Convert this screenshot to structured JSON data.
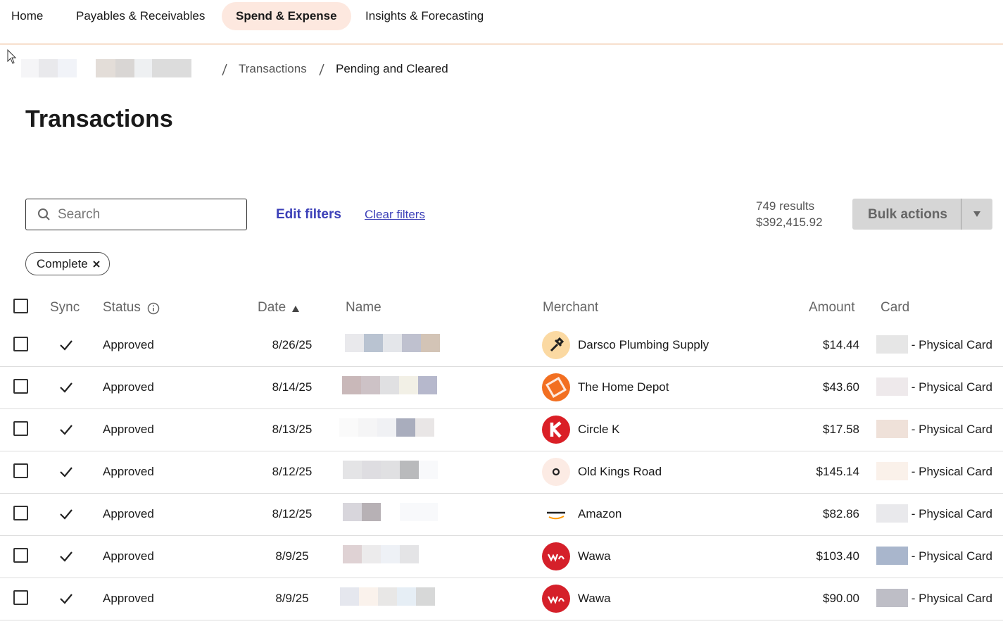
{
  "nav": [
    "Home",
    "Payables & Receivables",
    "Spend & Expense",
    "Insights & Forecasting"
  ],
  "breadcrumb": [
    "Transactions",
    "Pending and Cleared"
  ],
  "page_title": "Transactions",
  "toolbar": {
    "search_placeholder": "Search",
    "edit_filters": "Edit filters",
    "clear_filters": "Clear filters",
    "results": "749 results",
    "total": "$392,415.92",
    "bulk_actions": "Bulk actions"
  },
  "filter_chips": [
    "Complete"
  ],
  "table": {
    "columns": [
      "Sync",
      "Status",
      "Date",
      "Name",
      "Merchant",
      "Amount",
      "Card"
    ],
    "rows": [
      {
        "status": "Approved",
        "date": "8/26/25",
        "merchant": "Darsco Plumbing Supply",
        "amount": "$14.44",
        "card": "- Physical Card"
      },
      {
        "status": "Approved",
        "date": "8/14/25",
        "merchant": "The Home Depot",
        "amount": "$43.60",
        "card": "- Physical Card"
      },
      {
        "status": "Approved",
        "date": "8/13/25",
        "merchant": "Circle K",
        "amount": "$17.58",
        "card": "- Physical Card"
      },
      {
        "status": "Approved",
        "date": "8/12/25",
        "merchant": "Old Kings Road",
        "amount": "$145.14",
        "card": "- Physical Card"
      },
      {
        "status": "Approved",
        "date": "8/12/25",
        "merchant": "Amazon",
        "amount": "$82.86",
        "card": "- Physical Card"
      },
      {
        "status": "Approved",
        "date": "8/9/25",
        "merchant": "Wawa",
        "amount": "$103.40",
        "card": "- Physical Card"
      },
      {
        "status": "Approved",
        "date": "8/9/25",
        "merchant": "Wawa",
        "amount": "$90.00",
        "card": "- Physical Card"
      }
    ]
  }
}
